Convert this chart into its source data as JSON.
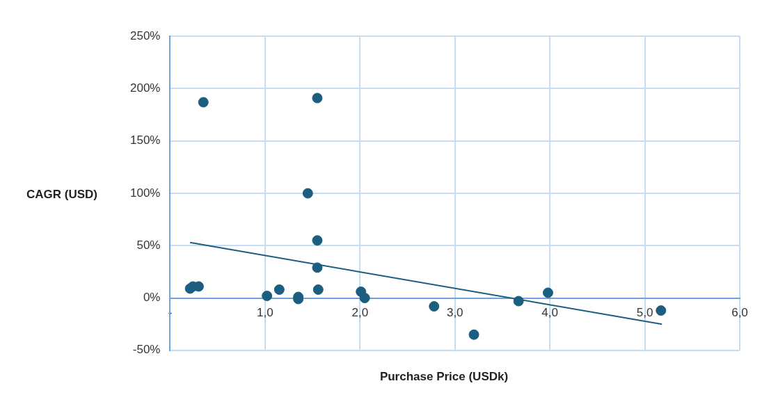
{
  "chart_data": {
    "type": "scatter",
    "xlabel": "Purchase Price (USDk)",
    "ylabel": "CAGR (USD)",
    "x": [
      0.21,
      0.24,
      0.3,
      0.35,
      1.02,
      1.15,
      1.35,
      1.35,
      1.45,
      1.55,
      1.55,
      1.55,
      1.56,
      2.01,
      2.05,
      2.78,
      3.2,
      3.67,
      3.98,
      5.17
    ],
    "series": [
      {
        "color": "#1b5e80",
        "marker": "circle",
        "values": [
          9,
          11,
          11,
          187,
          2,
          8,
          1,
          -1,
          100,
          191,
          55,
          29,
          8,
          6,
          0,
          -8,
          -35,
          -3,
          5,
          -12
        ]
      },
      {
        "type": "line",
        "color": "#1b5e80",
        "x": [
          0.21,
          5.18
        ],
        "values": [
          53,
          -25
        ]
      }
    ],
    "xlim": [
      0,
      6
    ],
    "xticks": [
      {
        "value": 0,
        "label": "-"
      },
      {
        "value": 1,
        "label": "1,0"
      },
      {
        "value": 2,
        "label": "2,0"
      },
      {
        "value": 3,
        "label": "3,0"
      },
      {
        "value": 4,
        "label": "4,0"
      },
      {
        "value": 5,
        "label": "5,0"
      },
      {
        "value": 6,
        "label": "6,0"
      }
    ],
    "ylim": [
      -50,
      250
    ],
    "yticks": [
      {
        "value": -50,
        "label": "-50%"
      },
      {
        "value": 0,
        "label": "0%"
      },
      {
        "value": 50,
        "label": "50%"
      },
      {
        "value": 100,
        "label": "100%"
      },
      {
        "value": 150,
        "label": "150%"
      },
      {
        "value": 200,
        "label": "200%"
      },
      {
        "value": 250,
        "label": "250%"
      }
    ],
    "grid": true,
    "legend": false
  }
}
